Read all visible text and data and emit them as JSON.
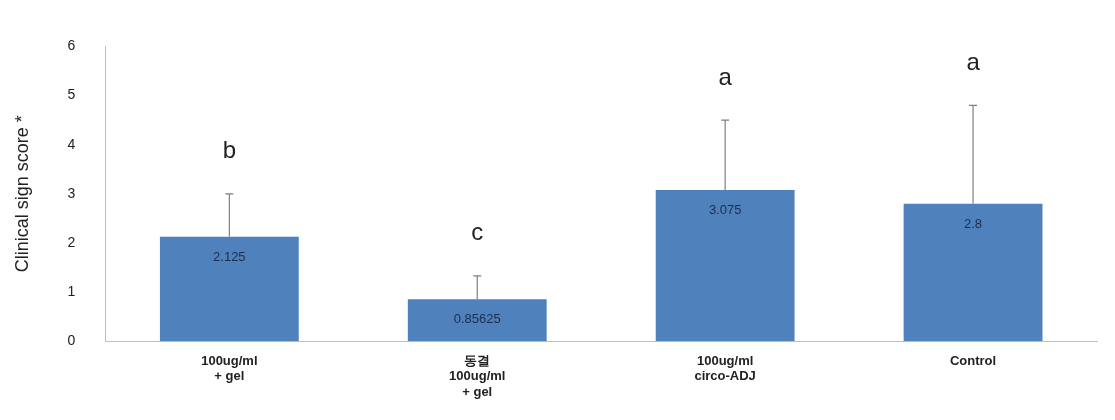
{
  "chart_data": {
    "type": "bar",
    "ylabel": "Clinical sign score *",
    "categories": [
      "100ug/ml\n+ gel",
      "동결\n100ug/ml\n+ gel",
      "100ug/ml\ncirco-ADJ",
      "Control"
    ],
    "values": [
      2.125,
      0.85625,
      3.075,
      2.8
    ],
    "color": "#4f81bd",
    "errors": [
      [
        2.125,
        3
      ],
      [
        0.85625,
        1.33
      ],
      [
        3.075,
        4.5
      ],
      [
        2.8,
        4.8
      ]
    ],
    "data_labels": true,
    "ylim": [
      0,
      6
    ],
    "yticks": [
      0,
      1,
      2,
      3,
      4,
      5,
      6
    ],
    "grid": false,
    "legend": false,
    "annotations": [
      "b",
      "c",
      "a",
      "a"
    ]
  }
}
